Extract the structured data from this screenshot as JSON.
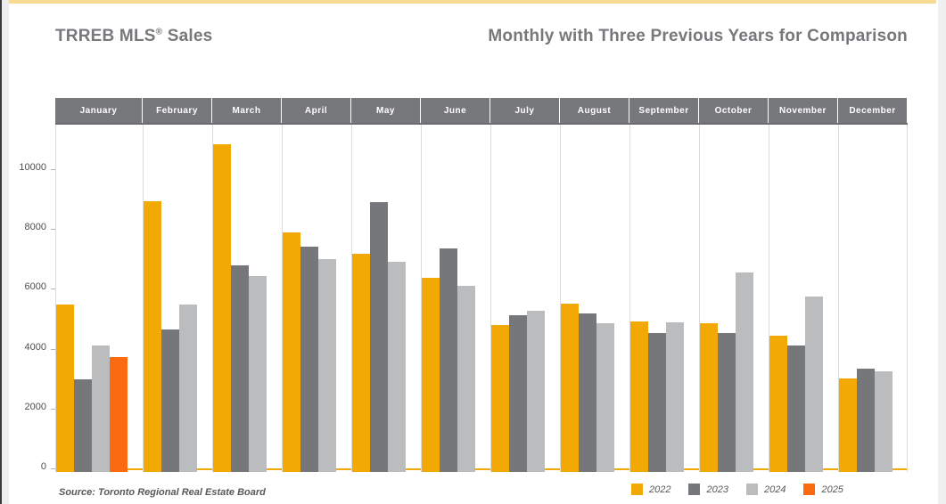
{
  "page": {
    "title_left_main": "TRREB MLS",
    "title_left_sup": "®",
    "title_left_rest": " Sales",
    "title_right": "Monthly with Three Previous Years for Comparison",
    "source_note": "Source: Toronto Regional Real Estate Board"
  },
  "colors": {
    "top_accent_bar": "#f7db92",
    "title_gray": "#77787b",
    "month_header_bg": "#77787b",
    "axis_baseline_orange": "#f2a905",
    "separator_gray": "#dcdcdc"
  },
  "chart_data": {
    "type": "bar",
    "title": "TRREB MLS® Sales",
    "subtitle": "Monthly with Three Previous Years for Comparison",
    "categories": [
      "January",
      "February",
      "March",
      "April",
      "May",
      "June",
      "July",
      "August",
      "September",
      "October",
      "November",
      "December"
    ],
    "series": [
      {
        "name": "2022",
        "color": "#f2a905",
        "values": [
          5594,
          9044,
          10955,
          8008,
          7283,
          6474,
          4912,
          5627,
          5038,
          4961,
          4544,
          3117
        ]
      },
      {
        "name": "2023",
        "color": "#76777a",
        "values": [
          3103,
          4765,
          6896,
          7531,
          9012,
          7481,
          5250,
          5294,
          4642,
          4646,
          4236,
          3444
        ]
      },
      {
        "name": "2024",
        "color": "#bbbcbe",
        "values": [
          4223,
          5607,
          6560,
          7114,
          7013,
          6213,
          5391,
          4975,
          4996,
          6658,
          5875,
          3359
        ]
      },
      {
        "name": "2025",
        "color": "#fb6911",
        "values": [
          3847,
          null,
          null,
          null,
          null,
          null,
          null,
          null,
          null,
          null,
          null,
          null
        ]
      }
    ],
    "yticks": [
      0,
      2000,
      4000,
      6000,
      8000,
      10000
    ],
    "ylim": [
      0,
      11600
    ],
    "xlabel": "",
    "ylabel": "",
    "grid": "vertical month separators only",
    "legend_position": "bottom-right",
    "source": "Source: Toronto Regional Real Estate Board"
  }
}
